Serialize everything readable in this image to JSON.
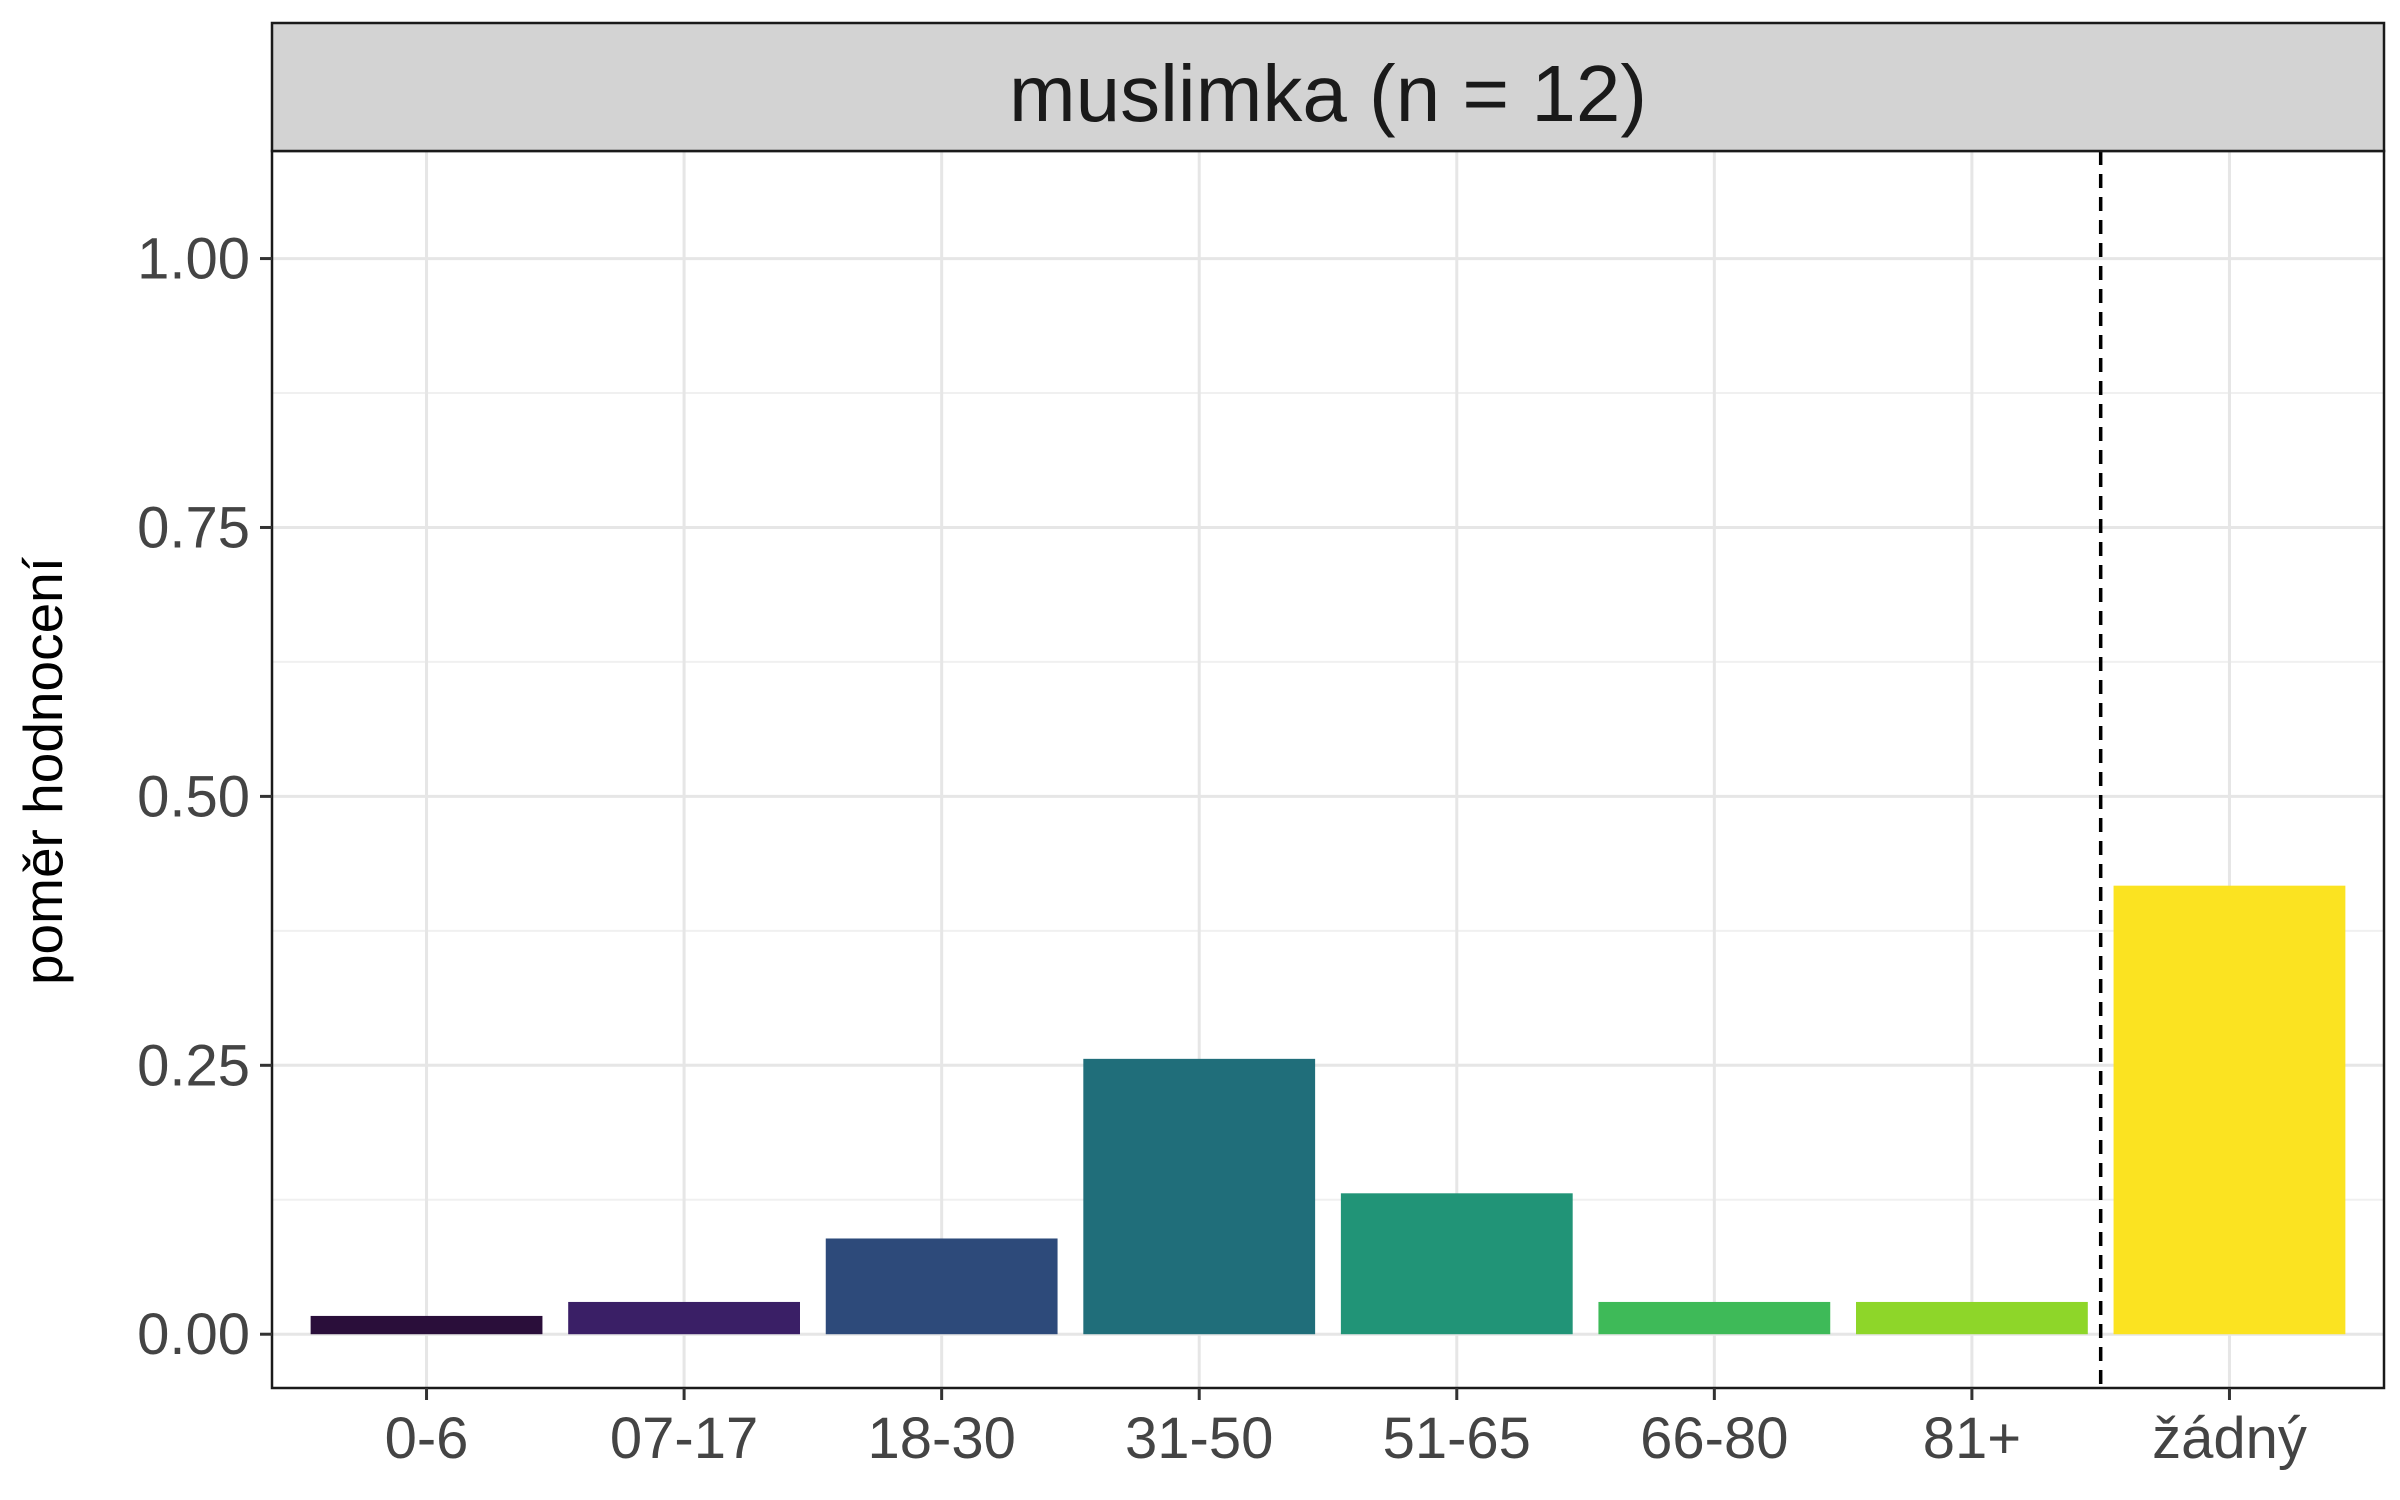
{
  "chart_data": {
    "type": "bar",
    "facet_title": "muslimka (n = 12)",
    "ylabel": "poměr hodnocení",
    "xlabel": "",
    "ylim": [
      -0.05,
      1.1
    ],
    "yticks": [
      "0.00",
      "0.25",
      "0.50",
      "0.75",
      "1.00"
    ],
    "categories": [
      "0-6",
      "07-17",
      "18-30",
      "31-50",
      "51-65",
      "66-80",
      "81+",
      "žádný"
    ],
    "values": [
      0.017,
      0.03,
      0.089,
      0.256,
      0.131,
      0.03,
      0.03,
      0.417
    ],
    "colors": [
      "#2A0E3A",
      "#3A1F66",
      "#2D4A7A",
      "#206E7A",
      "#219477",
      "#3EBA58",
      "#8ED629",
      "#FBE321"
    ],
    "reference_line": {
      "between": [
        "81+",
        "žádný"
      ],
      "style": "dashed"
    },
    "grid": true,
    "legend": "none"
  }
}
